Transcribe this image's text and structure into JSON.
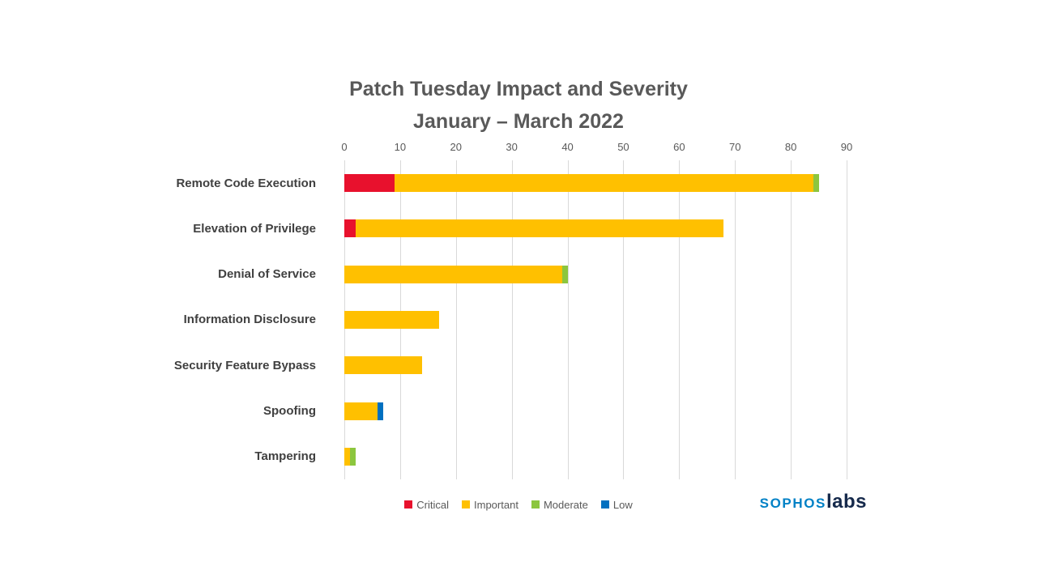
{
  "title": {
    "line1": "Patch Tuesday Impact and Severity",
    "line2": "January – March 2022"
  },
  "chart_data": {
    "type": "bar",
    "orientation": "horizontal",
    "stacked": true,
    "title": "Patch Tuesday Impact and Severity January – March 2022",
    "categories": [
      "Remote Code Execution",
      "Elevation of Privilege",
      "Denial of Service",
      "Information Disclosure",
      "Security Feature Bypass",
      "Spoofing",
      "Tampering"
    ],
    "series": [
      {
        "name": "Critical",
        "color": "#e8112d",
        "values": [
          9,
          2,
          0,
          0,
          0,
          0,
          0
        ]
      },
      {
        "name": "Important",
        "color": "#ffc000",
        "values": [
          75,
          66,
          39,
          17,
          14,
          6,
          1
        ]
      },
      {
        "name": "Moderate",
        "color": "#8cc63e",
        "values": [
          1,
          0,
          1,
          0,
          0,
          0,
          1
        ]
      },
      {
        "name": "Low",
        "color": "#0070c0",
        "values": [
          0,
          0,
          0,
          0,
          0,
          1,
          0
        ]
      }
    ],
    "xlim": [
      0,
      90
    ],
    "xticks": [
      0,
      10,
      20,
      30,
      40,
      50,
      60,
      70,
      80,
      90
    ],
    "grid": true,
    "legend_position": "bottom"
  },
  "logo": {
    "part1": "SOPHOS",
    "part2": "labs"
  }
}
